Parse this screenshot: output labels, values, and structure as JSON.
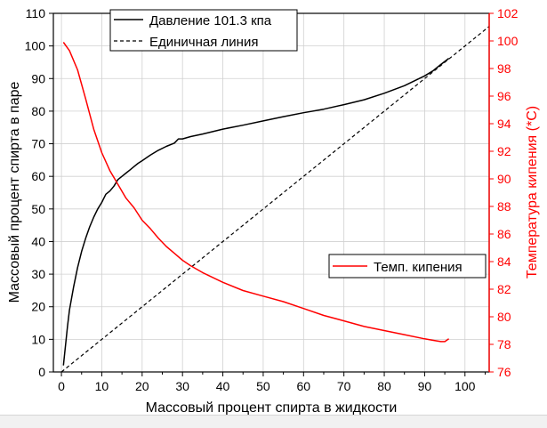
{
  "chart_data": {
    "type": "line",
    "xlabel": "Массовый процент спирта в жидкости",
    "ylabel_left": "Массовый процент спирта в паре",
    "ylabel_right": "Температура кипения (*C)",
    "xlim": [
      -2,
      106
    ],
    "xticks": [
      0,
      10,
      20,
      30,
      40,
      50,
      60,
      70,
      80,
      90,
      100
    ],
    "ylim_left": [
      0,
      110
    ],
    "yticks_left": [
      0,
      10,
      20,
      30,
      40,
      50,
      60,
      70,
      80,
      90,
      100,
      110
    ],
    "ylim_right": [
      76,
      102
    ],
    "yticks_right": [
      76,
      78,
      80,
      82,
      84,
      86,
      88,
      90,
      92,
      94,
      96,
      98,
      100,
      102
    ],
    "grid": true,
    "colors": {
      "vapor": "#000000",
      "unit": "#000000",
      "boiling": "#ff0000",
      "right_axis": "#ff0000",
      "grid": "#d0d0d0"
    },
    "series": [
      {
        "name": "Давление 101.3 кпа",
        "axis": "left",
        "x": [
          0.5,
          1,
          1.5,
          2,
          3,
          4,
          5,
          6,
          7,
          8,
          9,
          10,
          11,
          12,
          13,
          14,
          15,
          16,
          17,
          18,
          19,
          20,
          22,
          24,
          26,
          28,
          29,
          30,
          32,
          35,
          40,
          45,
          50,
          55,
          60,
          65,
          70,
          75,
          80,
          85,
          90,
          92,
          94,
          96
        ],
        "y": [
          2,
          8,
          14,
          19,
          26,
          32,
          37,
          41,
          44.5,
          47.5,
          50,
          52,
          54.5,
          55.5,
          57,
          59,
          60,
          61,
          62,
          63,
          64,
          64.8,
          66.5,
          68,
          69.2,
          70.2,
          71.5,
          71.5,
          72.2,
          73,
          74.5,
          75.7,
          77,
          78.3,
          79.5,
          80.6,
          82,
          83.5,
          85.5,
          87.8,
          90.8,
          92.3,
          94.3,
          96.2
        ]
      },
      {
        "name": "Единичная линия",
        "axis": "left",
        "x": [
          0,
          106
        ],
        "y": [
          0,
          106
        ]
      },
      {
        "name": "Темп. кипения",
        "axis": "right",
        "x": [
          0.5,
          2,
          4,
          6,
          8,
          10,
          12,
          14,
          16,
          18,
          20,
          22,
          24,
          26,
          28,
          30,
          32,
          35,
          40,
          45,
          50,
          55,
          60,
          65,
          70,
          75,
          80,
          85,
          90,
          92,
          94,
          95,
          96
        ],
        "y": [
          99.9,
          99.3,
          97.9,
          95.8,
          93.6,
          91.9,
          90.6,
          89.6,
          88.6,
          87.9,
          87,
          86.4,
          85.7,
          85.1,
          84.6,
          84.1,
          83.7,
          83.2,
          82.5,
          81.9,
          81.5,
          81.1,
          80.6,
          80.1,
          79.7,
          79.3,
          79,
          78.7,
          78.4,
          78.3,
          78.2,
          78.2,
          78.4
        ]
      }
    ],
    "legend_top": "top-left",
    "legend_bottom": "right"
  }
}
